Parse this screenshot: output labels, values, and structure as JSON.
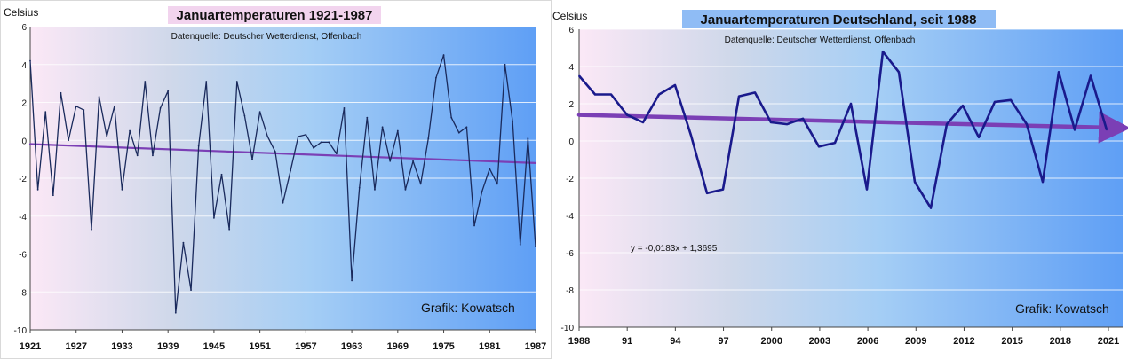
{
  "chart_data": [
    {
      "type": "line",
      "title": "Januartemperaturen 1921-1987",
      "subtitle": "Datenquelle: Deutscher Wetterdienst, Offenbach",
      "ylabel": "Celsius",
      "credit": "Grafik: Kowatsch",
      "ylim": [
        -10,
        6
      ],
      "xlim": [
        1921,
        1987
      ],
      "yticks": [
        "6",
        "4",
        "2",
        "0",
        "-2",
        "-4",
        "-6",
        "-8",
        "-10"
      ],
      "xticks": [
        "1921",
        "1927",
        "1933",
        "1939",
        "1945",
        "1951",
        "1957",
        "1963",
        "1969",
        "1975",
        "1981",
        "1987"
      ],
      "grid": true,
      "series": [
        {
          "color": "#1a2a5c",
          "x": [
            1921,
            1922,
            1923,
            1924,
            1925,
            1926,
            1927,
            1928,
            1929,
            1930,
            1931,
            1932,
            1933,
            1934,
            1935,
            1936,
            1937,
            1938,
            1939,
            1940,
            1941,
            1942,
            1943,
            1944,
            1945,
            1946,
            1947,
            1948,
            1949,
            1950,
            1951,
            1952,
            1953,
            1954,
            1955,
            1956,
            1957,
            1958,
            1959,
            1960,
            1961,
            1962,
            1963,
            1964,
            1965,
            1966,
            1967,
            1968,
            1969,
            1970,
            1971,
            1972,
            1973,
            1974,
            1975,
            1976,
            1977,
            1978,
            1979,
            1980,
            1981,
            1982,
            1983,
            1984,
            1985,
            1986,
            1987
          ],
          "values": [
            4.2,
            -2.6,
            1.5,
            -2.9,
            2.5,
            0.0,
            1.8,
            1.6,
            -4.7,
            2.3,
            0.2,
            1.8,
            -2.6,
            0.5,
            -0.8,
            3.1,
            -0.8,
            1.7,
            2.6,
            -9.1,
            -5.4,
            -7.9,
            -0.3,
            3.1,
            -4.1,
            -1.8,
            -4.7,
            3.1,
            1.3,
            -1.0,
            1.5,
            0.2,
            -0.6,
            -3.3,
            -1.6,
            0.2,
            0.3,
            -0.4,
            -0.1,
            -0.1,
            -0.7,
            1.7,
            -7.4,
            -2.5,
            1.2,
            -2.6,
            0.7,
            -1.1,
            0.5,
            -2.6,
            -1.1,
            -2.3,
            0.1,
            3.3,
            4.5,
            1.2,
            0.4,
            0.7,
            -4.5,
            -2.7,
            -1.5,
            -2.3,
            4.0,
            1.0,
            -5.5,
            0.1,
            -5.6
          ]
        }
      ],
      "trendline": {
        "color": "#7b3fb5",
        "from": [
          1921,
          -0.2
        ],
        "to": [
          1987,
          -1.2
        ]
      }
    },
    {
      "type": "line",
      "title": "Januartemperaturen Deutschland, seit 1988",
      "subtitle": "Datenquelle: Deutscher Wetterdienst, Offenbach",
      "ylabel": "Celsius",
      "credit": "Grafik: Kowatsch",
      "equation": "y = -0,0183x + 1,3695",
      "ylim": [
        -10,
        6
      ],
      "xlim": [
        1988,
        2022
      ],
      "yticks": [
        "6",
        "4",
        "2",
        "0",
        "-2",
        "-4",
        "-6",
        "-8",
        "-10"
      ],
      "xticks": [
        "1988",
        "91",
        "94",
        "97",
        "2000",
        "2003",
        "2006",
        "2009",
        "2012",
        "2015",
        "2018",
        "2021"
      ],
      "grid": true,
      "series": [
        {
          "color": "#1a1a8c",
          "x": [
            1988,
            1989,
            1990,
            1991,
            1992,
            1993,
            1994,
            1995,
            1996,
            1997,
            1998,
            1999,
            2000,
            2001,
            2002,
            2003,
            2004,
            2005,
            2006,
            2007,
            2008,
            2009,
            2010,
            2011,
            2012,
            2013,
            2014,
            2015,
            2016,
            2017,
            2018,
            2019,
            2020,
            2021
          ],
          "values": [
            3.5,
            2.5,
            2.5,
            1.4,
            1.0,
            2.5,
            3.0,
            0.3,
            -2.8,
            -2.6,
            2.4,
            2.6,
            1.0,
            0.9,
            1.2,
            -0.3,
            -0.1,
            2.0,
            -2.6,
            4.8,
            3.7,
            -2.2,
            -3.6,
            0.9,
            1.9,
            0.2,
            2.1,
            2.2,
            0.9,
            -2.2,
            3.7,
            0.6,
            3.5,
            0.6
          ]
        }
      ],
      "trendline": {
        "color": "#7b3fb5",
        "from": [
          1988,
          1.4
        ],
        "to": [
          2022,
          0.7
        ]
      }
    }
  ]
}
